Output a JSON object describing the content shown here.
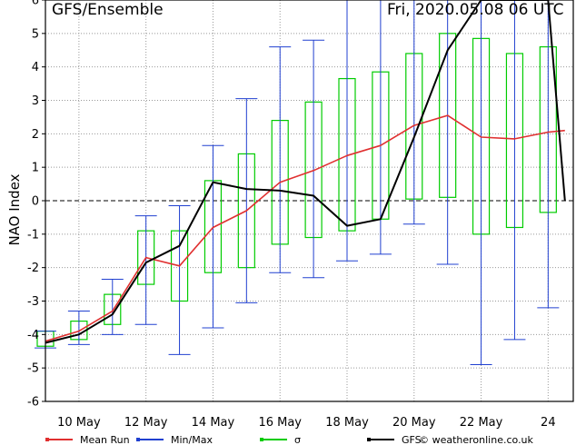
{
  "chart_data": {
    "type": "line",
    "title": "GFS/Ensemble",
    "run_label": "Fri, 2020.05.08   06 UTC",
    "ylabel": "NAO Index",
    "xlabel": "",
    "ylim": [
      -6,
      6
    ],
    "yticks": [
      -6,
      -5,
      -4,
      -3,
      -2,
      -1,
      0,
      1,
      2,
      3,
      4,
      5,
      6
    ],
    "x_start": "2020-05-09",
    "x_end": "2020-05-24",
    "xticks": [
      {
        "date": "2020-05-10",
        "label": "10 May"
      },
      {
        "date": "2020-05-12",
        "label": "12 May"
      },
      {
        "date": "2020-05-14",
        "label": "14 May"
      },
      {
        "date": "2020-05-16",
        "label": "16 May"
      },
      {
        "date": "2020-05-18",
        "label": "18 May"
      },
      {
        "date": "2020-05-20",
        "label": "20 May"
      },
      {
        "date": "2020-05-22",
        "label": "22 May"
      },
      {
        "date": "2020-05-24",
        "label": "24"
      }
    ],
    "grid": true,
    "zero_line": true,
    "colors": {
      "mean": "#e03030",
      "minmax": "#2040d0",
      "sigma": "#00cc00",
      "gfs": "#000000"
    },
    "series": [
      {
        "name": "Mean Run",
        "x": [
          "2020-05-09",
          "2020-05-10",
          "2020-05-11",
          "2020-05-12",
          "2020-05-13",
          "2020-05-14",
          "2020-05-15",
          "2020-05-16",
          "2020-05-17",
          "2020-05-18",
          "2020-05-19",
          "2020-05-20",
          "2020-05-21",
          "2020-05-22",
          "2020-05-23",
          "2020-05-24",
          "2020-05-24 12:00"
        ],
        "values": [
          -4.2,
          -3.9,
          -3.3,
          -1.7,
          -1.95,
          -0.8,
          -0.3,
          0.55,
          0.9,
          1.35,
          1.65,
          2.25,
          2.55,
          1.9,
          1.85,
          2.05,
          2.1
        ]
      },
      {
        "name": "GFS",
        "x": [
          "2020-05-09",
          "2020-05-10",
          "2020-05-11",
          "2020-05-12",
          "2020-05-13",
          "2020-05-14",
          "2020-05-15",
          "2020-05-16",
          "2020-05-17",
          "2020-05-18",
          "2020-05-19",
          "2020-05-20",
          "2020-05-21",
          "2020-05-22",
          "2020-05-23",
          "2020-05-24",
          "2020-05-24 12:00"
        ],
        "values": [
          -4.25,
          -4.0,
          -3.4,
          -1.85,
          -1.35,
          0.55,
          0.35,
          0.3,
          0.15,
          -0.75,
          -0.55,
          1.9,
          4.5,
          6.0,
          6.0,
          6.0,
          0.0
        ]
      }
    ],
    "minmax": [
      {
        "x": "2020-05-09",
        "min": -4.4,
        "max": -3.9
      },
      {
        "x": "2020-05-10",
        "min": -4.3,
        "max": -3.3
      },
      {
        "x": "2020-05-11",
        "min": -4.0,
        "max": -2.35
      },
      {
        "x": "2020-05-12",
        "min": -3.7,
        "max": -0.45
      },
      {
        "x": "2020-05-13",
        "min": -4.6,
        "max": -0.15
      },
      {
        "x": "2020-05-14",
        "min": -3.8,
        "max": 1.65
      },
      {
        "x": "2020-05-15",
        "min": -3.05,
        "max": 3.05
      },
      {
        "x": "2020-05-16",
        "min": -2.15,
        "max": 4.6
      },
      {
        "x": "2020-05-17",
        "min": -2.3,
        "max": 4.8
      },
      {
        "x": "2020-05-18",
        "min": -1.8,
        "max": 6.0
      },
      {
        "x": "2020-05-19",
        "min": -1.6,
        "max": 6.0
      },
      {
        "x": "2020-05-20",
        "min": -0.7,
        "max": 6.0
      },
      {
        "x": "2020-05-21",
        "min": -1.9,
        "max": 6.0
      },
      {
        "x": "2020-05-22",
        "min": -4.9,
        "max": 6.0
      },
      {
        "x": "2020-05-23",
        "min": -4.15,
        "max": 6.0
      },
      {
        "x": "2020-05-24",
        "min": -3.2,
        "max": 6.0
      }
    ],
    "sigma": [
      {
        "x": "2020-05-09",
        "low": -4.35,
        "high": -3.9
      },
      {
        "x": "2020-05-10",
        "low": -4.15,
        "high": -3.6
      },
      {
        "x": "2020-05-11",
        "low": -3.7,
        "high": -2.8
      },
      {
        "x": "2020-05-12",
        "low": -2.5,
        "high": -0.9
      },
      {
        "x": "2020-05-13",
        "low": -3.0,
        "high": -0.9
      },
      {
        "x": "2020-05-14",
        "low": -2.15,
        "high": 0.6
      },
      {
        "x": "2020-05-15",
        "low": -2.0,
        "high": 1.4
      },
      {
        "x": "2020-05-16",
        "low": -1.3,
        "high": 2.4
      },
      {
        "x": "2020-05-17",
        "low": -1.1,
        "high": 2.95
      },
      {
        "x": "2020-05-18",
        "low": -0.9,
        "high": 3.65
      },
      {
        "x": "2020-05-19",
        "low": -0.55,
        "high": 3.85
      },
      {
        "x": "2020-05-20",
        "low": 0.05,
        "high": 4.4
      },
      {
        "x": "2020-05-21",
        "low": 0.1,
        "high": 5.0
      },
      {
        "x": "2020-05-22",
        "low": -1.0,
        "high": 4.85
      },
      {
        "x": "2020-05-23",
        "low": -0.8,
        "high": 4.4
      },
      {
        "x": "2020-05-24",
        "low": -0.35,
        "high": 4.6
      }
    ],
    "legend": {
      "placement": "bottom",
      "items": [
        {
          "label": "Mean Run",
          "color": "#e03030"
        },
        {
          "label": "Min/Max",
          "color": "#2040d0"
        },
        {
          "label": "σ",
          "color": "#00cc00"
        },
        {
          "label": "GFS",
          "color": "#000000"
        }
      ]
    },
    "credit": "© weatheronline.co.uk"
  }
}
